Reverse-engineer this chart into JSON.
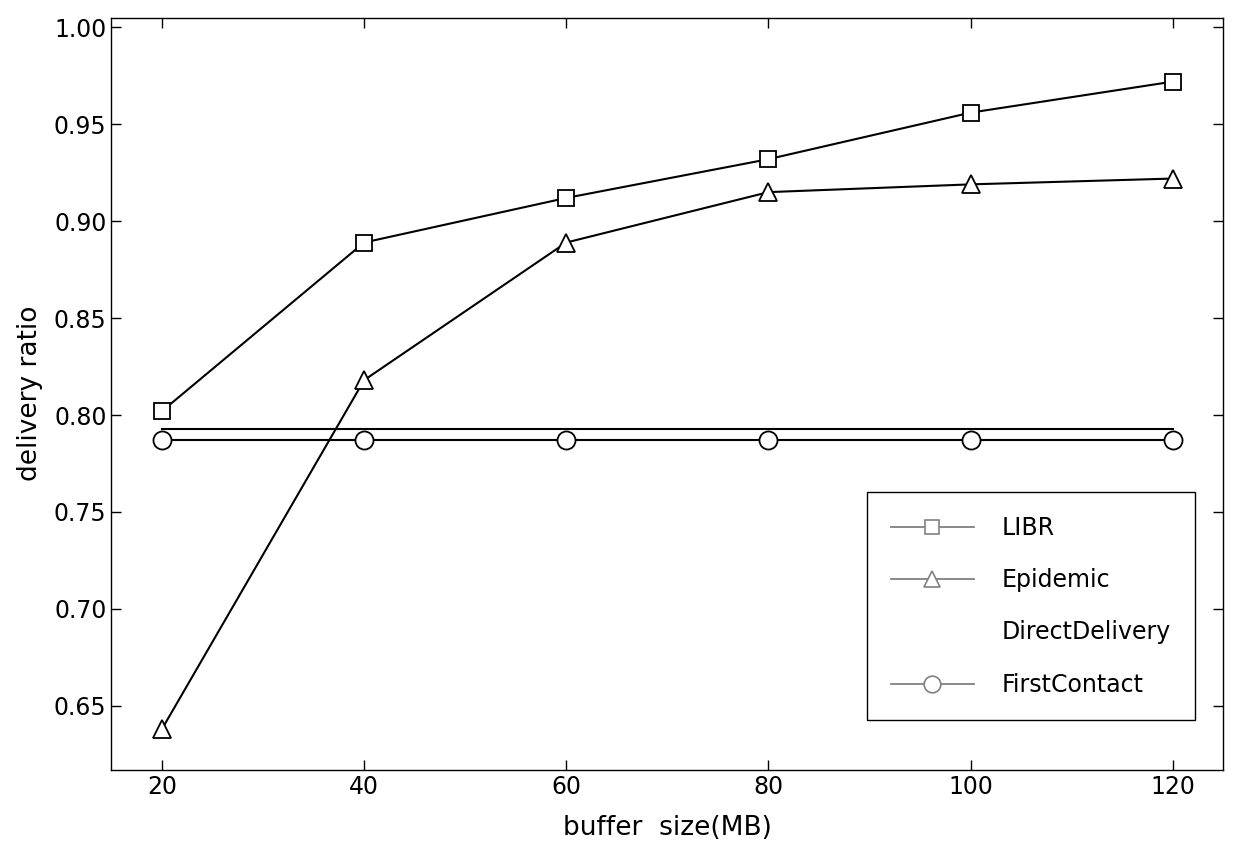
{
  "x": [
    20,
    40,
    60,
    80,
    100,
    120
  ],
  "LIBR": [
    0.802,
    0.889,
    0.912,
    0.932,
    0.956,
    0.972
  ],
  "Epidemic": [
    0.638,
    0.818,
    0.889,
    0.915,
    0.919,
    0.922
  ],
  "DirectDelivery": [
    0.793,
    0.793,
    0.793,
    0.793,
    0.793,
    0.793
  ],
  "FirstContact": [
    0.787,
    0.787,
    0.787,
    0.787,
    0.787,
    0.787
  ],
  "xlabel": "buffer  size(MB)",
  "ylabel": "delivery ratio",
  "xlim": [
    15,
    125
  ],
  "ylim": [
    0.617,
    1.005
  ],
  "yticks": [
    0.65,
    0.7,
    0.75,
    0.8,
    0.85,
    0.9,
    0.95,
    1.0
  ],
  "xticks": [
    20,
    40,
    60,
    80,
    100,
    120
  ],
  "line_color": "#000000",
  "background_color": "#ffffff",
  "marker_size": 11,
  "linewidth": 1.5,
  "legend_fontsize": 17,
  "tick_labelsize": 17,
  "axis_labelsize": 19
}
